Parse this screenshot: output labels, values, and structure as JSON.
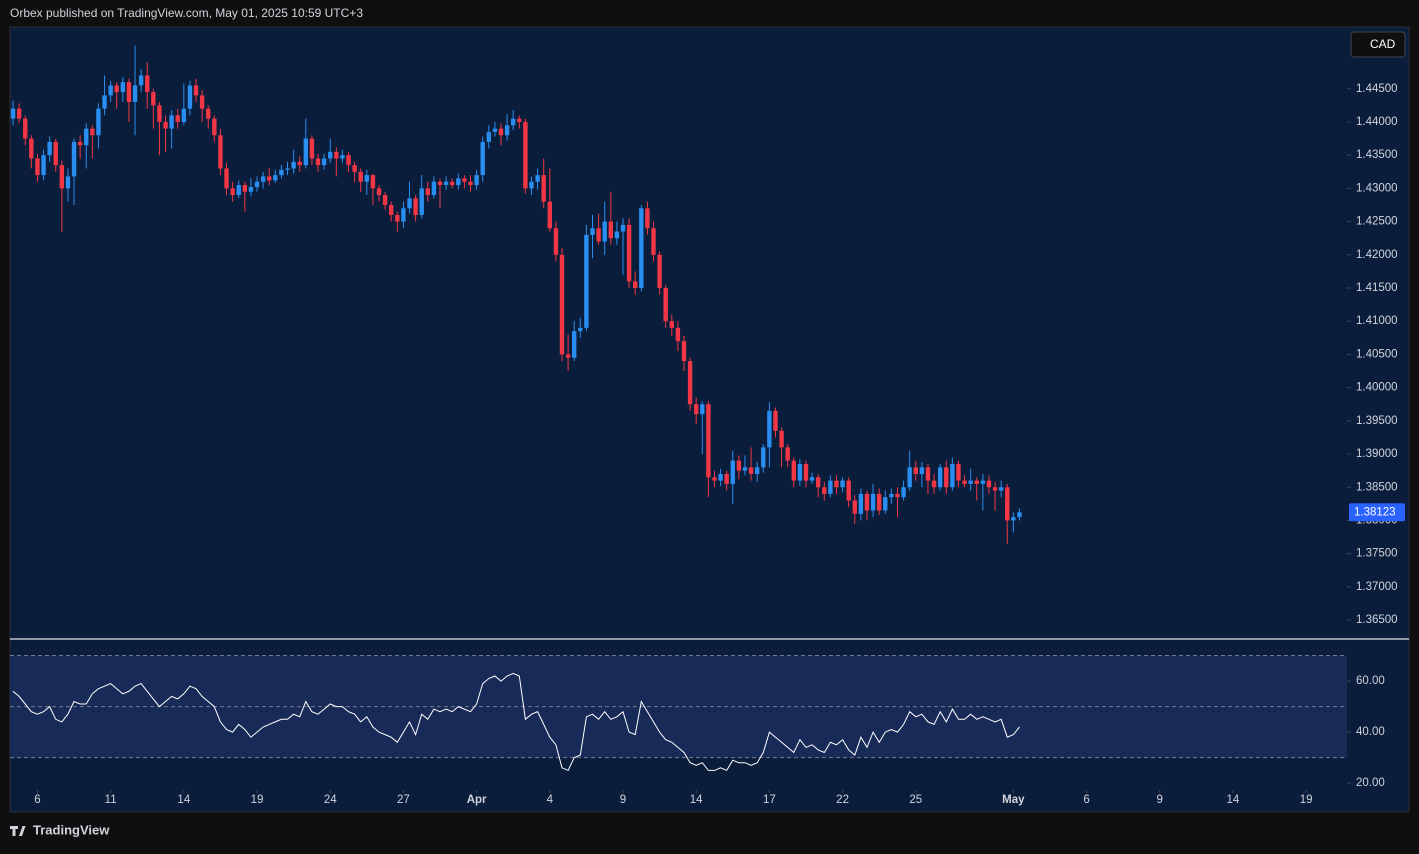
{
  "header": {
    "text": "Orbex published on TradingView.com, May 01, 2025 10:59 UTC+3"
  },
  "footer": {
    "brand": "TradingView"
  },
  "chart_data": [
    {
      "type": "candlestick",
      "currency": "CAD",
      "up_color": "#2a8ef0",
      "down_color": "#f23645",
      "xlim": [
        -0.5,
        218.7
      ],
      "ylim": [
        1.3623,
        1.4543
      ],
      "yticks": [
        {
          "value": 1.445,
          "label": "1.44500"
        },
        {
          "value": 1.44,
          "label": "1.44000"
        },
        {
          "value": 1.435,
          "label": "1.43500"
        },
        {
          "value": 1.43,
          "label": "1.43000"
        },
        {
          "value": 1.425,
          "label": "1.42500"
        },
        {
          "value": 1.42,
          "label": "1.42000"
        },
        {
          "value": 1.415,
          "label": "1.41500"
        },
        {
          "value": 1.41,
          "label": "1.41000"
        },
        {
          "value": 1.405,
          "label": "1.40500"
        },
        {
          "value": 1.4,
          "label": "1.40000"
        },
        {
          "value": 1.395,
          "label": "1.39500"
        },
        {
          "value": 1.39,
          "label": "1.39000"
        },
        {
          "value": 1.385,
          "label": "1.38500"
        },
        {
          "value": 1.38,
          "label": "1.38000"
        },
        {
          "value": 1.375,
          "label": "1.37500"
        },
        {
          "value": 1.37,
          "label": "1.37000"
        },
        {
          "value": 1.365,
          "label": "1.36500"
        }
      ],
      "open": [
        1.4405,
        1.442,
        1.4405,
        1.4375,
        1.4345,
        1.432,
        1.435,
        1.437,
        1.4335,
        1.43,
        1.4318,
        1.437,
        1.4365,
        1.439,
        1.438,
        1.442,
        1.444,
        1.4455,
        1.4445,
        1.446,
        1.443,
        1.4455,
        1.447,
        1.4445,
        1.4425,
        1.44,
        1.439,
        1.441,
        1.44,
        1.442,
        1.4455,
        1.444,
        1.442,
        1.4405,
        1.438,
        1.433,
        1.43,
        1.429,
        1.4305,
        1.4295,
        1.4302,
        1.431,
        1.4318,
        1.4312,
        1.432,
        1.4328,
        1.433,
        1.434,
        1.4335,
        1.4375,
        1.4345,
        1.4335,
        1.4345,
        1.4355,
        1.4345,
        1.435,
        1.4335,
        1.4325,
        1.431,
        1.432,
        1.43,
        1.429,
        1.4275,
        1.426,
        1.425,
        1.427,
        1.4285,
        1.426,
        1.43,
        1.429,
        1.431,
        1.4305,
        1.431,
        1.4305,
        1.4315,
        1.431,
        1.4305,
        1.432,
        1.437,
        1.4385,
        1.439,
        1.438,
        1.4395,
        1.4405,
        1.44,
        1.43,
        1.431,
        1.432,
        1.428,
        1.424,
        1.42,
        1.405,
        1.4045,
        1.4085,
        1.409,
        1.423,
        1.424,
        1.422,
        1.425,
        1.4225,
        1.4235,
        1.4245,
        1.416,
        1.415,
        1.427,
        1.424,
        1.42,
        1.415,
        1.41,
        1.409,
        1.407,
        1.404,
        1.3975,
        1.396,
        1.3975,
        1.3865,
        1.386,
        1.387,
        1.3855,
        1.389,
        1.3875,
        1.388,
        1.387,
        1.388,
        1.391,
        1.3965,
        1.3935,
        1.391,
        1.389,
        1.386,
        1.3885,
        1.386,
        1.3865,
        1.385,
        1.384,
        1.386,
        1.385,
        1.386,
        1.383,
        1.381,
        1.384,
        1.3815,
        1.384,
        1.3815,
        1.3835,
        1.384,
        1.3835,
        1.385,
        1.388,
        1.387,
        1.388,
        1.386,
        1.385,
        1.388,
        1.385,
        1.3885,
        1.386,
        1.3855,
        1.386,
        1.3855,
        1.386,
        1.385,
        1.3845,
        1.385,
        1.38,
        1.3805
      ],
      "high": [
        1.4432,
        1.4428,
        1.441,
        1.438,
        1.4352,
        1.4358,
        1.4378,
        1.4375,
        1.4342,
        1.433,
        1.4375,
        1.438,
        1.4398,
        1.4395,
        1.4428,
        1.447,
        1.4462,
        1.446,
        1.4468,
        1.4465,
        1.4515,
        1.448,
        1.449,
        1.445,
        1.443,
        1.441,
        1.4418,
        1.442,
        1.4458,
        1.4462,
        1.4465,
        1.4448,
        1.4425,
        1.441,
        1.439,
        1.4338,
        1.431,
        1.4312,
        1.431,
        1.4315,
        1.4318,
        1.4325,
        1.433,
        1.4328,
        1.4335,
        1.434,
        1.4358,
        1.4348,
        1.4405,
        1.438,
        1.4352,
        1.4352,
        1.4375,
        1.4362,
        1.4358,
        1.4355,
        1.434,
        1.433,
        1.4328,
        1.4322,
        1.4305,
        1.4295,
        1.428,
        1.4265,
        1.428,
        1.431,
        1.429,
        1.432,
        1.431,
        1.4318,
        1.4315,
        1.4318,
        1.4315,
        1.4322,
        1.432,
        1.432,
        1.4328,
        1.4378,
        1.4395,
        1.44,
        1.4398,
        1.4412,
        1.4418,
        1.441,
        1.4405,
        1.4318,
        1.433,
        1.4345,
        1.433,
        1.425,
        1.421,
        1.408,
        1.41,
        1.4105,
        1.4245,
        1.426,
        1.4262,
        1.428,
        1.4295,
        1.425,
        1.4255,
        1.4255,
        1.4175,
        1.4275,
        1.428,
        1.425,
        1.4205,
        1.4155,
        1.411,
        1.41,
        1.4078,
        1.4045,
        1.3985,
        1.398,
        1.398,
        1.3875,
        1.3878,
        1.3875,
        1.3905,
        1.3898,
        1.3898,
        1.391,
        1.3888,
        1.3915,
        1.3978,
        1.397,
        1.394,
        1.3915,
        1.3895,
        1.3892,
        1.389,
        1.3872,
        1.387,
        1.3858,
        1.3868,
        1.3868,
        1.3865,
        1.3865,
        1.3838,
        1.3848,
        1.3845,
        1.3855,
        1.3848,
        1.3845,
        1.3848,
        1.385,
        1.386,
        1.3905,
        1.389,
        1.3888,
        1.3885,
        1.387,
        1.3885,
        1.389,
        1.3895,
        1.389,
        1.3868,
        1.3878,
        1.3865,
        1.387,
        1.3868,
        1.3858,
        1.386,
        1.3855,
        1.3812,
        1.3818
      ],
      "low": [
        1.4395,
        1.4398,
        1.4365,
        1.433,
        1.431,
        1.4312,
        1.434,
        1.4325,
        1.4235,
        1.428,
        1.4275,
        1.4345,
        1.433,
        1.4345,
        1.436,
        1.441,
        1.443,
        1.442,
        1.443,
        1.44,
        1.438,
        1.4445,
        1.442,
        1.439,
        1.435,
        1.4355,
        1.436,
        1.439,
        1.4395,
        1.441,
        1.443,
        1.44,
        1.439,
        1.437,
        1.432,
        1.429,
        1.428,
        1.4285,
        1.4265,
        1.4288,
        1.4295,
        1.43,
        1.4305,
        1.4308,
        1.4315,
        1.432,
        1.4322,
        1.4325,
        1.433,
        1.4335,
        1.4325,
        1.4328,
        1.4338,
        1.4318,
        1.4338,
        1.4325,
        1.431,
        1.4295,
        1.429,
        1.4275,
        1.428,
        1.4268,
        1.425,
        1.4235,
        1.424,
        1.4262,
        1.425,
        1.4255,
        1.428,
        1.4285,
        1.427,
        1.4298,
        1.43,
        1.4298,
        1.43,
        1.4295,
        1.4298,
        1.431,
        1.436,
        1.4378,
        1.4365,
        1.4372,
        1.4388,
        1.439,
        1.4292,
        1.429,
        1.4298,
        1.427,
        1.4235,
        1.419,
        1.404,
        1.4025,
        1.404,
        1.4075,
        1.4085,
        1.4195,
        1.4215,
        1.42,
        1.4215,
        1.4215,
        1.417,
        1.415,
        1.414,
        1.4145,
        1.423,
        1.419,
        1.414,
        1.409,
        1.4078,
        1.4055,
        1.4025,
        1.3965,
        1.3945,
        1.39,
        1.3835,
        1.385,
        1.3852,
        1.3845,
        1.3825,
        1.3862,
        1.3868,
        1.386,
        1.3858,
        1.3872,
        1.388,
        1.3925,
        1.388,
        1.388,
        1.385,
        1.3852,
        1.385,
        1.3855,
        1.3835,
        1.383,
        1.3835,
        1.384,
        1.3842,
        1.382,
        1.3795,
        1.38,
        1.38,
        1.3805,
        1.3808,
        1.381,
        1.3825,
        1.3805,
        1.383,
        1.3845,
        1.386,
        1.385,
        1.384,
        1.384,
        1.3845,
        1.384,
        1.3845,
        1.385,
        1.385,
        1.3845,
        1.383,
        1.3815,
        1.384,
        1.3815,
        1.3835,
        1.3765,
        1.3782,
        1.38
      ],
      "close": [
        1.442,
        1.4405,
        1.4375,
        1.4345,
        1.432,
        1.435,
        1.437,
        1.4335,
        1.43,
        1.4318,
        1.437,
        1.4365,
        1.439,
        1.438,
        1.442,
        1.444,
        1.4455,
        1.4445,
        1.446,
        1.443,
        1.4455,
        1.447,
        1.4445,
        1.4425,
        1.44,
        1.439,
        1.441,
        1.44,
        1.442,
        1.4455,
        1.444,
        1.442,
        1.4405,
        1.438,
        1.433,
        1.43,
        1.429,
        1.4305,
        1.4295,
        1.4302,
        1.431,
        1.4318,
        1.4312,
        1.432,
        1.4328,
        1.433,
        1.434,
        1.4335,
        1.4375,
        1.4345,
        1.4335,
        1.4345,
        1.4355,
        1.4345,
        1.435,
        1.4335,
        1.4325,
        1.431,
        1.432,
        1.43,
        1.429,
        1.4275,
        1.426,
        1.425,
        1.427,
        1.4285,
        1.426,
        1.43,
        1.429,
        1.431,
        1.4305,
        1.431,
        1.4305,
        1.4315,
        1.431,
        1.4305,
        1.432,
        1.437,
        1.4385,
        1.439,
        1.438,
        1.4395,
        1.4405,
        1.44,
        1.43,
        1.431,
        1.432,
        1.428,
        1.424,
        1.42,
        1.405,
        1.4045,
        1.4085,
        1.409,
        1.423,
        1.424,
        1.422,
        1.425,
        1.4225,
        1.4235,
        1.4245,
        1.416,
        1.415,
        1.427,
        1.424,
        1.42,
        1.415,
        1.41,
        1.409,
        1.407,
        1.404,
        1.3975,
        1.396,
        1.3975,
        1.3865,
        1.386,
        1.387,
        1.3855,
        1.389,
        1.3875,
        1.388,
        1.387,
        1.388,
        1.391,
        1.3965,
        1.3935,
        1.391,
        1.389,
        1.386,
        1.3885,
        1.386,
        1.3865,
        1.385,
        1.384,
        1.386,
        1.385,
        1.386,
        1.383,
        1.381,
        1.384,
        1.3815,
        1.384,
        1.3815,
        1.3835,
        1.384,
        1.3835,
        1.385,
        1.388,
        1.387,
        1.388,
        1.386,
        1.385,
        1.388,
        1.385,
        1.3885,
        1.386,
        1.3855,
        1.386,
        1.3855,
        1.386,
        1.385,
        1.3845,
        1.385,
        1.38,
        1.3805,
        1.38123
      ]
    },
    {
      "type": "line",
      "color": "#ffffff",
      "xlim": [
        -0.5,
        218.7
      ],
      "ylim": [
        17.3,
        76.1
      ],
      "yticks": [
        {
          "value": 60,
          "label": "60.00"
        },
        {
          "value": 40,
          "label": "40.00"
        },
        {
          "value": 20,
          "label": "20.00"
        }
      ],
      "levels": [
        70,
        50,
        30
      ],
      "band": [
        30,
        70
      ],
      "xticks": [
        {
          "value": 4,
          "label": "6"
        },
        {
          "value": 16,
          "label": "11"
        },
        {
          "value": 28,
          "label": "14"
        },
        {
          "value": 40,
          "label": "19"
        },
        {
          "value": 52,
          "label": "24"
        },
        {
          "value": 64,
          "label": "27"
        },
        {
          "value": 76,
          "label": "Apr"
        },
        {
          "value": 88,
          "label": "4"
        },
        {
          "value": 100,
          "label": "9"
        },
        {
          "value": 112,
          "label": "14"
        },
        {
          "value": 124,
          "label": "17"
        },
        {
          "value": 136,
          "label": "22"
        },
        {
          "value": 148,
          "label": "25"
        },
        {
          "value": 164,
          "label": "May"
        },
        {
          "value": 176,
          "label": "6"
        },
        {
          "value": 188,
          "label": "9"
        },
        {
          "value": 200,
          "label": "14"
        },
        {
          "value": 212,
          "label": "19"
        }
      ],
      "values": [
        56,
        54,
        51,
        48,
        47,
        48,
        50,
        45,
        44,
        47,
        52,
        51,
        51,
        55,
        57,
        58,
        59,
        57,
        55,
        56,
        58,
        59,
        56,
        53,
        50,
        52,
        54,
        53,
        55,
        58,
        57,
        54,
        52,
        50,
        44,
        41,
        40,
        43,
        41,
        38,
        40,
        42,
        43,
        44,
        45,
        45,
        47,
        46,
        52,
        48,
        47,
        49,
        51,
        50,
        50,
        48,
        47,
        44,
        46,
        42,
        40,
        39,
        38,
        36,
        40,
        44,
        39,
        47,
        45,
        49,
        48,
        49,
        48,
        50,
        49,
        48,
        51,
        59,
        61,
        62,
        60,
        62,
        63,
        62,
        45,
        47,
        48,
        43,
        38,
        35,
        26,
        25,
        30,
        31,
        46,
        47,
        45,
        48,
        45,
        46,
        48,
        40,
        39,
        52,
        48,
        44,
        40,
        37,
        36,
        34,
        32,
        28,
        27,
        28,
        25,
        25,
        26,
        25,
        29,
        28,
        28,
        27,
        28,
        32,
        40,
        38,
        36,
        34,
        32,
        37,
        34,
        35,
        33,
        32,
        36,
        35,
        37,
        33,
        31,
        38,
        34,
        40,
        36,
        40,
        41,
        40,
        43,
        48,
        46,
        47,
        44,
        43,
        48,
        44,
        49,
        45,
        45,
        47,
        45,
        46,
        45,
        44,
        45,
        38,
        39,
        42
      ]
    }
  ]
}
